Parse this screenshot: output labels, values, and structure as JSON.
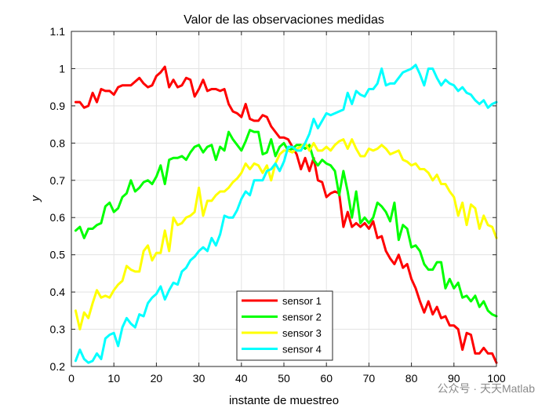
{
  "chart_data": {
    "type": "line",
    "title": "Valor de las observaciones medidas",
    "xlabel": "instante de muestreo",
    "ylabel": "y",
    "xlim": [
      0,
      100
    ],
    "ylim": [
      0.2,
      1.1
    ],
    "xticks": [
      0,
      10,
      20,
      30,
      40,
      50,
      60,
      70,
      80,
      90,
      100
    ],
    "xtick_labels": [
      "0",
      "10",
      "20",
      "30",
      "40",
      "50",
      "60",
      "70",
      "80",
      "90",
      "100"
    ],
    "yticks": [
      0.2,
      0.3,
      0.4,
      0.5,
      0.6,
      0.7,
      0.8,
      0.9,
      1.0,
      1.1
    ],
    "ytick_labels": [
      "0.2",
      "0.3",
      "0.4",
      "0.5",
      "0.6",
      "0.7",
      "0.8",
      "0.9",
      "1",
      "1.1"
    ],
    "grid": true,
    "legend_position": "bottom-center",
    "x": [
      1,
      2,
      3,
      4,
      5,
      6,
      7,
      8,
      9,
      10,
      11,
      12,
      13,
      14,
      15,
      16,
      17,
      18,
      19,
      20,
      21,
      22,
      23,
      24,
      25,
      26,
      27,
      28,
      29,
      30,
      31,
      32,
      33,
      34,
      35,
      36,
      37,
      38,
      39,
      40,
      41,
      42,
      43,
      44,
      45,
      46,
      47,
      48,
      49,
      50,
      51,
      52,
      53,
      54,
      55,
      56,
      57,
      58,
      59,
      60,
      61,
      62,
      63,
      64,
      65,
      66,
      67,
      68,
      69,
      70,
      71,
      72,
      73,
      74,
      75,
      76,
      77,
      78,
      79,
      80,
      81,
      82,
      83,
      84,
      85,
      86,
      87,
      88,
      89,
      90,
      91,
      92,
      93,
      94,
      95,
      96,
      97,
      98,
      99,
      100
    ],
    "series": [
      {
        "name": "sensor 1",
        "color": "#ff0000",
        "values": [
          0.91,
          0.91,
          0.895,
          0.9,
          0.935,
          0.91,
          0.945,
          0.94,
          0.94,
          0.93,
          0.95,
          0.955,
          0.955,
          0.955,
          0.965,
          0.975,
          0.96,
          0.95,
          0.955,
          0.98,
          0.99,
          1.005,
          0.95,
          0.97,
          0.95,
          0.955,
          0.975,
          0.97,
          0.925,
          0.945,
          0.97,
          0.94,
          0.945,
          0.945,
          0.94,
          0.945,
          0.905,
          0.885,
          0.88,
          0.87,
          0.905,
          0.865,
          0.86,
          0.86,
          0.875,
          0.87,
          0.845,
          0.83,
          0.815,
          0.815,
          0.81,
          0.79,
          0.77,
          0.73,
          0.76,
          0.725,
          0.76,
          0.7,
          0.695,
          0.655,
          0.665,
          0.67,
          0.665,
          0.575,
          0.615,
          0.575,
          0.585,
          0.575,
          0.585,
          0.57,
          0.59,
          0.545,
          0.55,
          0.51,
          0.49,
          0.475,
          0.5,
          0.465,
          0.475,
          0.435,
          0.41,
          0.375,
          0.345,
          0.375,
          0.34,
          0.36,
          0.33,
          0.335,
          0.31,
          0.31,
          0.3,
          0.245,
          0.29,
          0.285,
          0.235,
          0.235,
          0.25,
          0.235,
          0.235,
          0.21
        ]
      },
      {
        "name": "sensor 2",
        "color": "#00ff00",
        "values": [
          0.565,
          0.575,
          0.545,
          0.57,
          0.57,
          0.58,
          0.585,
          0.63,
          0.64,
          0.615,
          0.625,
          0.655,
          0.665,
          0.7,
          0.67,
          0.68,
          0.695,
          0.7,
          0.69,
          0.71,
          0.74,
          0.69,
          0.755,
          0.76,
          0.76,
          0.765,
          0.755,
          0.775,
          0.79,
          0.795,
          0.775,
          0.79,
          0.795,
          0.755,
          0.79,
          0.78,
          0.83,
          0.81,
          0.795,
          0.78,
          0.805,
          0.835,
          0.83,
          0.83,
          0.77,
          0.775,
          0.81,
          0.765,
          0.79,
          0.8,
          0.78,
          0.785,
          0.795,
          0.795,
          0.785,
          0.795,
          0.755,
          0.74,
          0.755,
          0.745,
          0.74,
          0.725,
          0.66,
          0.725,
          0.67,
          0.6,
          0.67,
          0.585,
          0.6,
          0.585,
          0.6,
          0.64,
          0.63,
          0.615,
          0.59,
          0.64,
          0.54,
          0.58,
          0.57,
          0.52,
          0.525,
          0.51,
          0.475,
          0.46,
          0.46,
          0.48,
          0.48,
          0.41,
          0.435,
          0.41,
          0.425,
          0.385,
          0.39,
          0.375,
          0.39,
          0.36,
          0.375,
          0.35,
          0.34,
          0.335
        ]
      },
      {
        "name": "sensor 3",
        "color": "#ffff00",
        "values": [
          0.35,
          0.3,
          0.345,
          0.33,
          0.37,
          0.405,
          0.385,
          0.39,
          0.385,
          0.405,
          0.42,
          0.43,
          0.47,
          0.46,
          0.455,
          0.455,
          0.51,
          0.525,
          0.485,
          0.505,
          0.505,
          0.565,
          0.51,
          0.6,
          0.58,
          0.585,
          0.6,
          0.605,
          0.615,
          0.68,
          0.605,
          0.645,
          0.645,
          0.66,
          0.67,
          0.67,
          0.68,
          0.695,
          0.705,
          0.72,
          0.745,
          0.73,
          0.745,
          0.74,
          0.72,
          0.74,
          0.7,
          0.745,
          0.77,
          0.78,
          0.78,
          0.775,
          0.785,
          0.79,
          0.8,
          0.78,
          0.8,
          0.78,
          0.78,
          0.79,
          0.78,
          0.795,
          0.805,
          0.81,
          0.785,
          0.81,
          0.785,
          0.765,
          0.765,
          0.785,
          0.78,
          0.785,
          0.795,
          0.785,
          0.77,
          0.775,
          0.78,
          0.755,
          0.75,
          0.74,
          0.745,
          0.73,
          0.73,
          0.72,
          0.7,
          0.715,
          0.69,
          0.69,
          0.67,
          0.655,
          0.605,
          0.64,
          0.58,
          0.635,
          0.625,
          0.57,
          0.605,
          0.58,
          0.575,
          0.545
        ]
      },
      {
        "name": "sensor 4",
        "color": "#00ffff",
        "values": [
          0.215,
          0.245,
          0.22,
          0.21,
          0.215,
          0.235,
          0.22,
          0.275,
          0.285,
          0.29,
          0.255,
          0.305,
          0.33,
          0.315,
          0.305,
          0.34,
          0.335,
          0.37,
          0.385,
          0.395,
          0.415,
          0.38,
          0.405,
          0.425,
          0.42,
          0.455,
          0.465,
          0.485,
          0.495,
          0.51,
          0.52,
          0.51,
          0.545,
          0.525,
          0.555,
          0.605,
          0.6,
          0.6,
          0.62,
          0.65,
          0.67,
          0.66,
          0.7,
          0.7,
          0.7,
          0.725,
          0.73,
          0.745,
          0.725,
          0.75,
          0.79,
          0.79,
          0.78,
          0.78,
          0.8,
          0.825,
          0.865,
          0.84,
          0.86,
          0.88,
          0.875,
          0.88,
          0.885,
          0.89,
          0.935,
          0.905,
          0.94,
          0.93,
          0.925,
          0.945,
          0.945,
          0.96,
          1.0,
          0.955,
          0.96,
          0.96,
          0.975,
          0.99,
          0.995,
          1.0,
          1.01,
          0.985,
          0.955,
          1.0,
          1.0,
          0.975,
          0.955,
          0.97,
          0.96,
          0.955,
          0.94,
          0.95,
          0.935,
          0.93,
          0.915,
          0.905,
          0.915,
          0.895,
          0.905,
          0.91
        ]
      }
    ]
  },
  "watermark": "公众号 · 天天Matlab"
}
